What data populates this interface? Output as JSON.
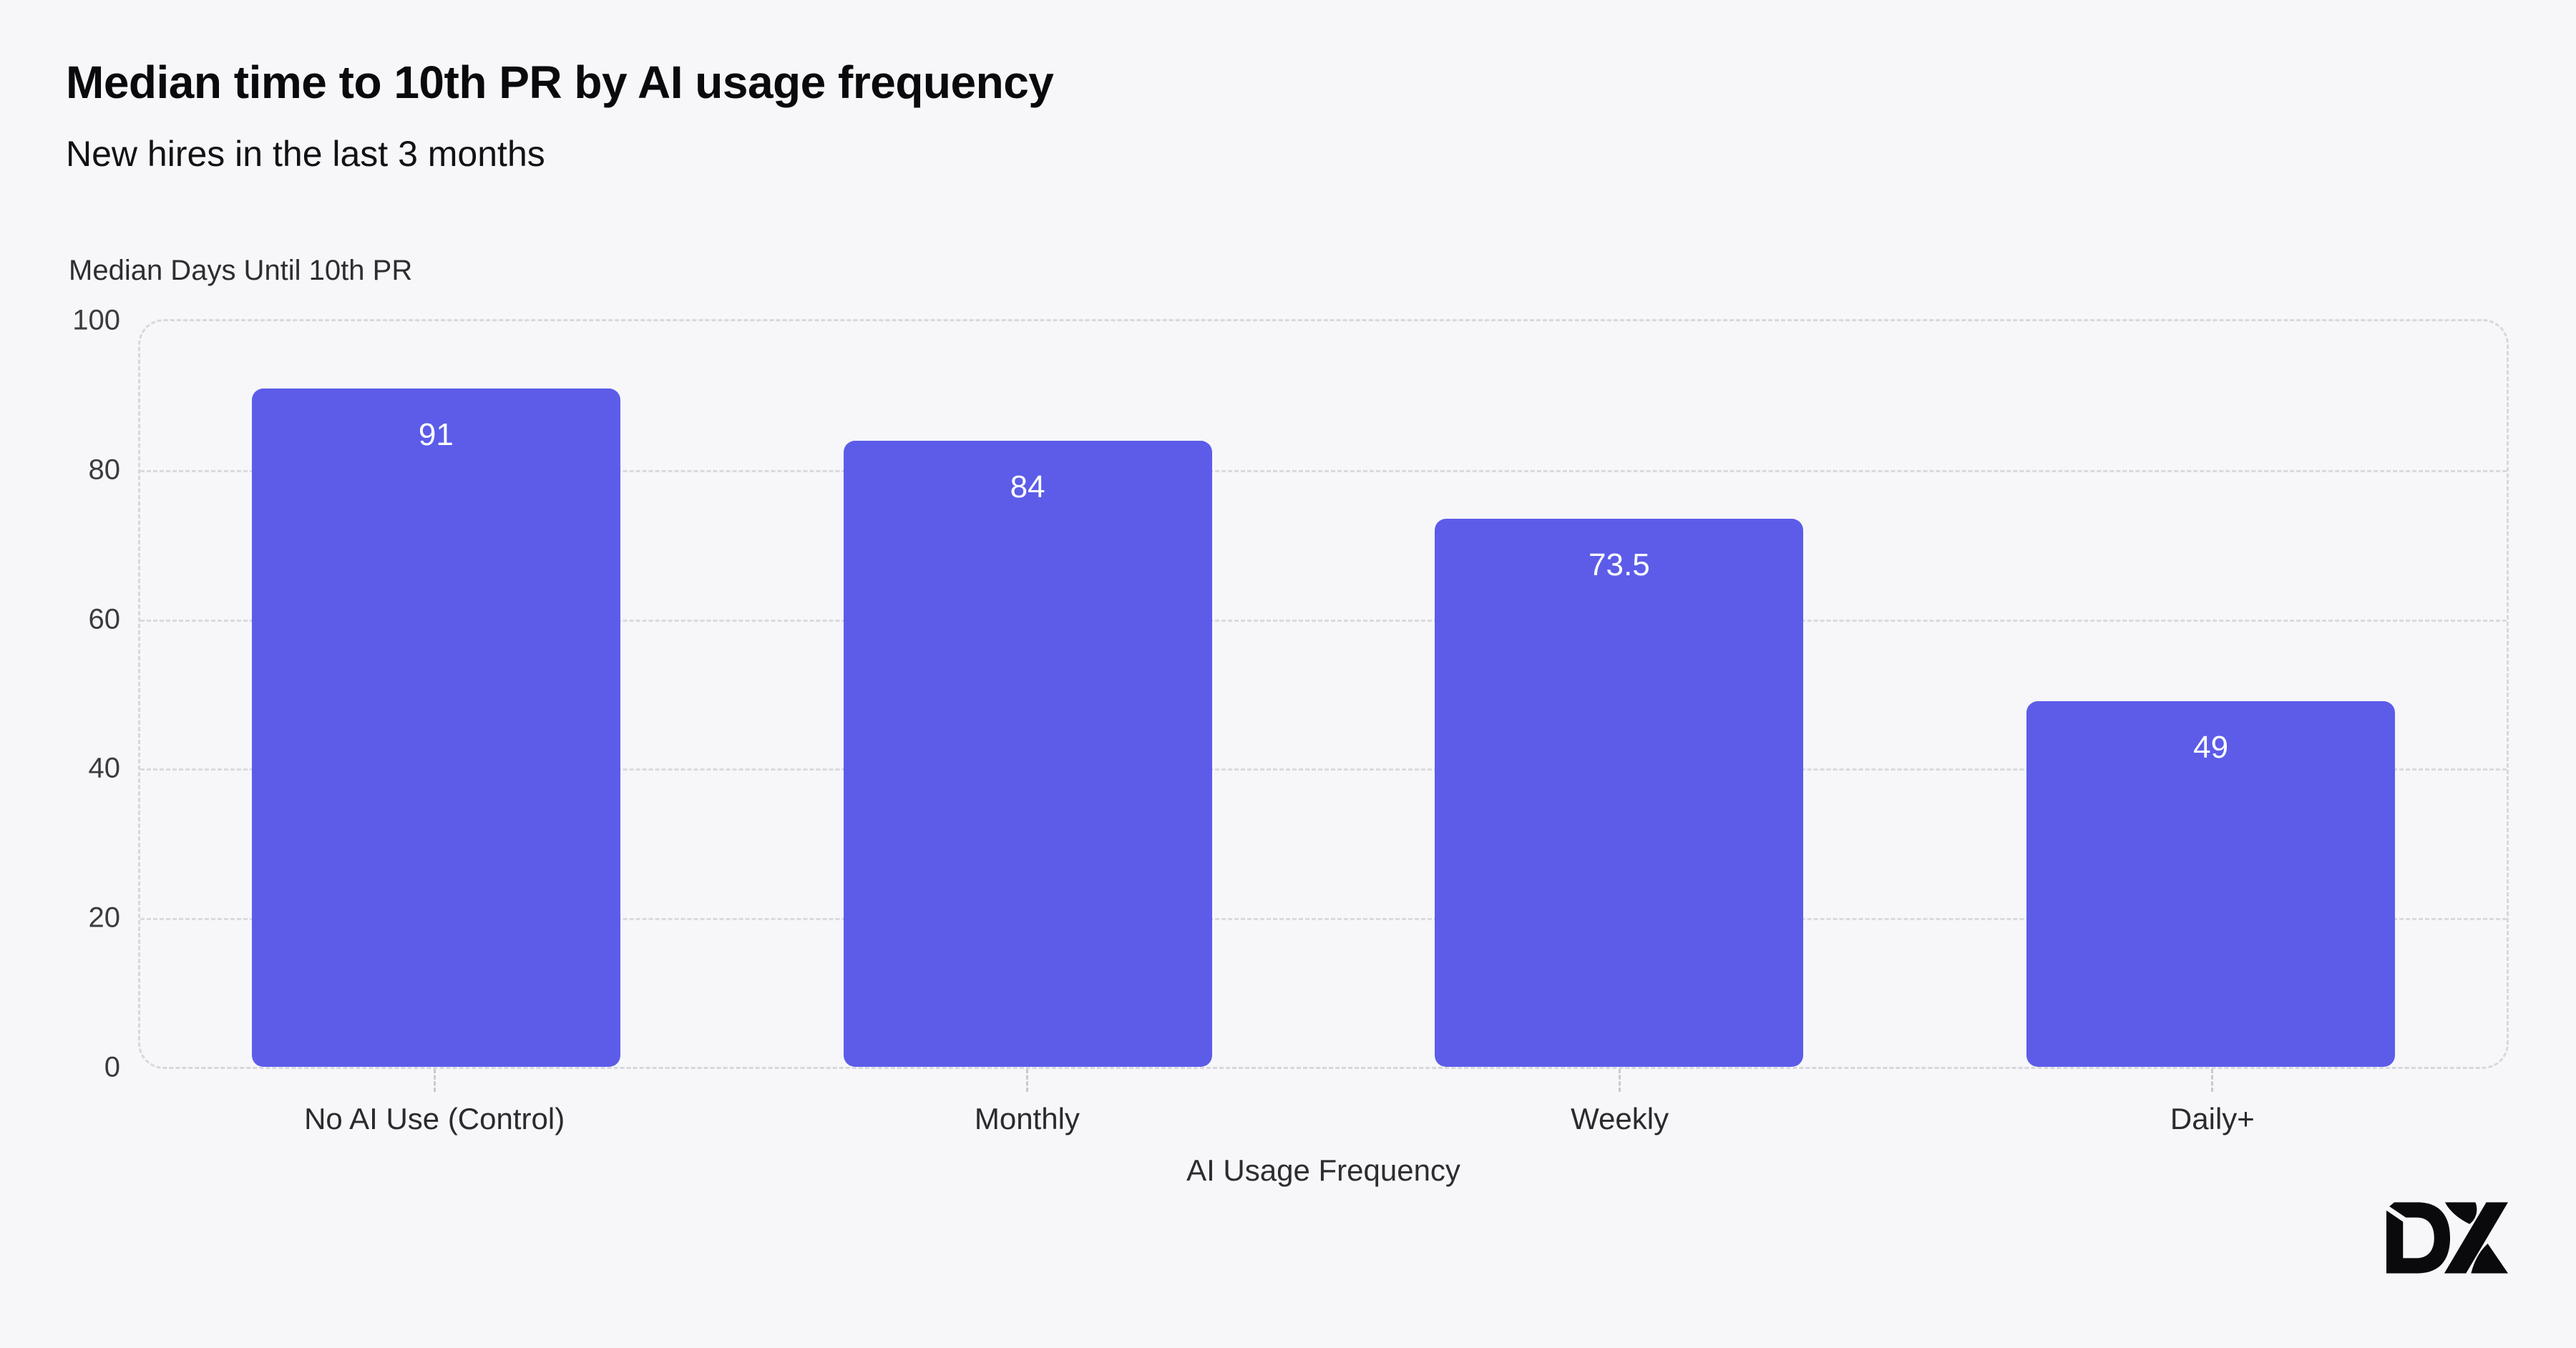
{
  "header": {
    "title": "Median time to 10th PR by AI usage frequency",
    "subtitle": "New hires in the last 3 months"
  },
  "chart_data": {
    "type": "bar",
    "title": "Median time to 10th PR by AI usage frequency",
    "subtitle": "New hires in the last 3 months",
    "xlabel": "AI Usage Frequency",
    "ylabel": "Median Days Until 10th PR",
    "categories": [
      "No AI Use (Control)",
      "Monthly",
      "Weekly",
      "Daily+"
    ],
    "values": [
      91,
      84,
      73.5,
      49
    ],
    "value_labels": [
      "91",
      "84",
      "73.5",
      "49"
    ],
    "ylim": [
      0,
      100
    ],
    "yticks": [
      100,
      80,
      60,
      40,
      20,
      0
    ],
    "ytick_labels": [
      "100",
      "80",
      "60",
      "40",
      "20",
      "0"
    ],
    "grid": "horizontal-dashed",
    "legend": "none",
    "bar_color": "#5c5ce9",
    "value_label_color": "#ffffff",
    "background_color": "#f7f7f9"
  },
  "branding": {
    "logo_text": "DX"
  }
}
